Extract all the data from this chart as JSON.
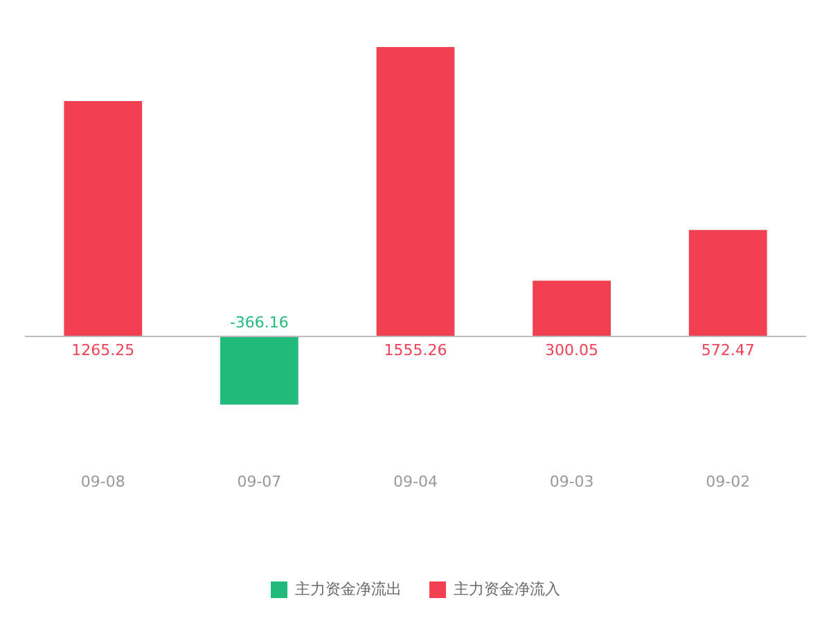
{
  "chart_data": {
    "type": "bar",
    "categories": [
      "09-08",
      "09-07",
      "09-04",
      "09-03",
      "09-02"
    ],
    "series": [
      {
        "name": "主力资金净流出",
        "color": "#22bb7d",
        "values": [
          null,
          -366.16,
          null,
          null,
          null
        ]
      },
      {
        "name": "主力资金净流入",
        "color": "#f23f51",
        "values": [
          1265.25,
          null,
          1555.26,
          300.05,
          572.47
        ]
      }
    ],
    "data_labels": true,
    "legend": "bottom",
    "grid": false
  }
}
